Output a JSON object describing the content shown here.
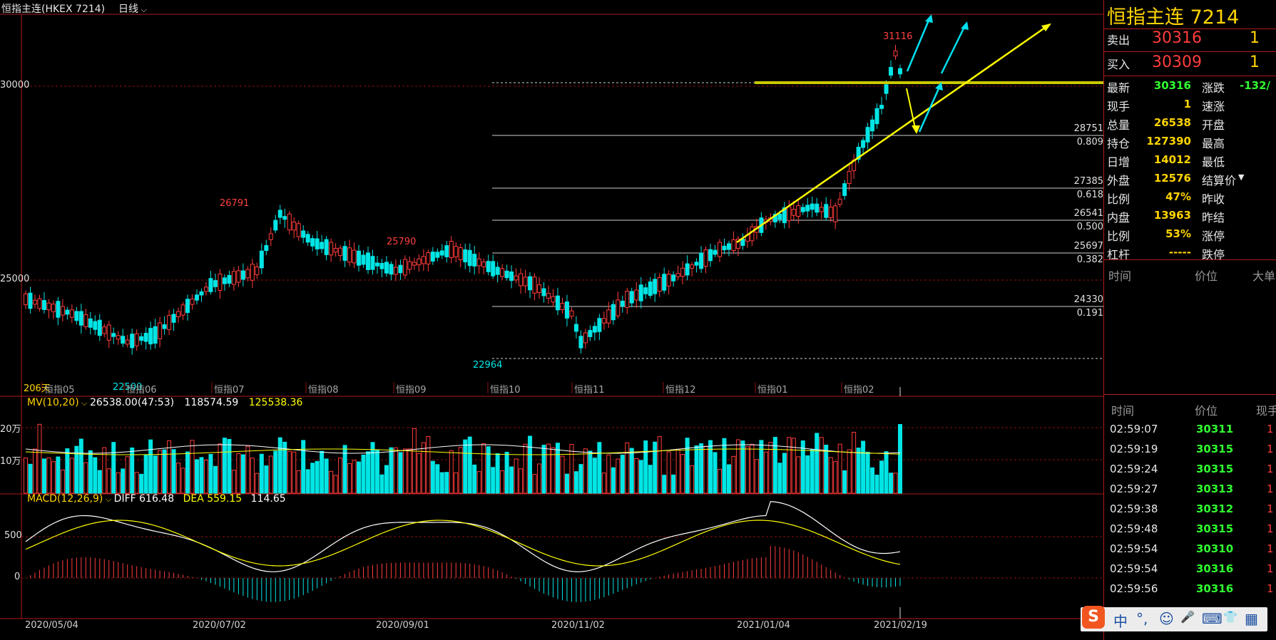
{
  "header": {
    "instrument": "恒指主连(HKEX 7214)",
    "period": "日线",
    "period_icon": "chevron-down-icon"
  },
  "quote": {
    "title": "恒指主连  7214",
    "sell_label": "卖出",
    "sell_price": "30316",
    "sell_qty": "1",
    "buy_label": "买入",
    "buy_price": "30309",
    "buy_qty": "1",
    "rows": [
      {
        "label": "最新",
        "value": "30316",
        "label2": "涨跌",
        "value2": "-132/",
        "color": "#30ff30"
      },
      {
        "label": "现手",
        "value": "1",
        "label2": "速涨",
        "value2": "",
        "color": "#ffd400"
      },
      {
        "label": "总量",
        "value": "26538",
        "label2": "开盘",
        "value2": "",
        "color": "#ffd400"
      },
      {
        "label": "持仓",
        "value": "127390",
        "label2": "最高",
        "value2": "",
        "color": "#ffd400"
      },
      {
        "label": "日增",
        "value": "14012",
        "label2": "最低",
        "value2": "",
        "color": "#ffd400"
      },
      {
        "label": "外盘",
        "value": "12576",
        "label2": "结算价",
        "value2": "",
        "color": "#ffd400"
      },
      {
        "label": "比例",
        "value": "47%",
        "label2": "昨收",
        "value2": "",
        "color": "#ffd400"
      },
      {
        "label": "内盘",
        "value": "13963",
        "label2": "昨结",
        "value2": "",
        "color": "#ffd400"
      },
      {
        "label": "比例",
        "value": "53%",
        "label2": "涨停",
        "value2": "",
        "color": "#ffd400"
      },
      {
        "label": "杠杆",
        "value": "-----",
        "label2": "跌停",
        "value2": "",
        "color": "#ffd400"
      }
    ],
    "big_headers": {
      "time": "时间",
      "price": "价位",
      "big": "大单"
    },
    "tick_headers": {
      "time": "时间",
      "price": "价位",
      "vol": "现手"
    },
    "ticks": [
      {
        "time": "02:59:07",
        "price": "30311",
        "vol": "1"
      },
      {
        "time": "02:59:19",
        "price": "30315",
        "vol": "1"
      },
      {
        "time": "02:59:24",
        "price": "30315",
        "vol": "1"
      },
      {
        "time": "02:59:27",
        "price": "30313",
        "vol": "1"
      },
      {
        "time": "02:59:38",
        "price": "30312",
        "vol": "1"
      },
      {
        "time": "02:59:48",
        "price": "30315",
        "vol": "1"
      },
      {
        "time": "02:59:54",
        "price": "30310",
        "vol": "1"
      },
      {
        "time": "02:59:54",
        "price": "30316",
        "vol": "1"
      },
      {
        "time": "02:59:56",
        "price": "30316",
        "vol": "1"
      }
    ]
  },
  "price_axis": {
    "labels": [
      "30000",
      "25000"
    ]
  },
  "price_marks": {
    "high_1": "26791",
    "high_2": "25790",
    "low_1": "22964",
    "low_2": "22500",
    "peak": "31116",
    "days": "206天"
  },
  "fib_levels": [
    {
      "price": "28751",
      "ratio": "0.809"
    },
    {
      "price": "27385",
      "ratio": "0.618"
    },
    {
      "price": "26541",
      "ratio": "0.500"
    },
    {
      "price": "25697",
      "ratio": "0.382"
    },
    {
      "price": "24330",
      "ratio": "0.191"
    }
  ],
  "month_labels": [
    "恒指05",
    "恒指06",
    "恒指07",
    "恒指08",
    "恒指09",
    "恒指10",
    "恒指11",
    "恒指12",
    "恒指01",
    "恒指02"
  ],
  "volume": {
    "label": "MV(10,20)",
    "current": "26538.00(47:53)",
    "mv10": "118574.59",
    "mv20": "125538.36",
    "axis": [
      "20万",
      "10万"
    ]
  },
  "macd": {
    "label": "MACD(12,26,9)",
    "diff": "DIFF 616.48",
    "dea": "DEA 559.15",
    "macd": "114.65",
    "axis": [
      "500",
      "0"
    ]
  },
  "date_axis": [
    "2020/05/04",
    "2020/07/02",
    "2020/09/01",
    "2020/11/02",
    "2021/01/04",
    "2021/02/19"
  ],
  "ime_bar": {
    "items": [
      "中",
      "°,",
      "☺",
      "🎤",
      "⌨",
      "👕",
      "▦"
    ]
  },
  "colors": {
    "up": "#ff3c3c",
    "down": "#00e5e5",
    "yellow": "#ffff00",
    "grid": "#8b1010"
  }
}
